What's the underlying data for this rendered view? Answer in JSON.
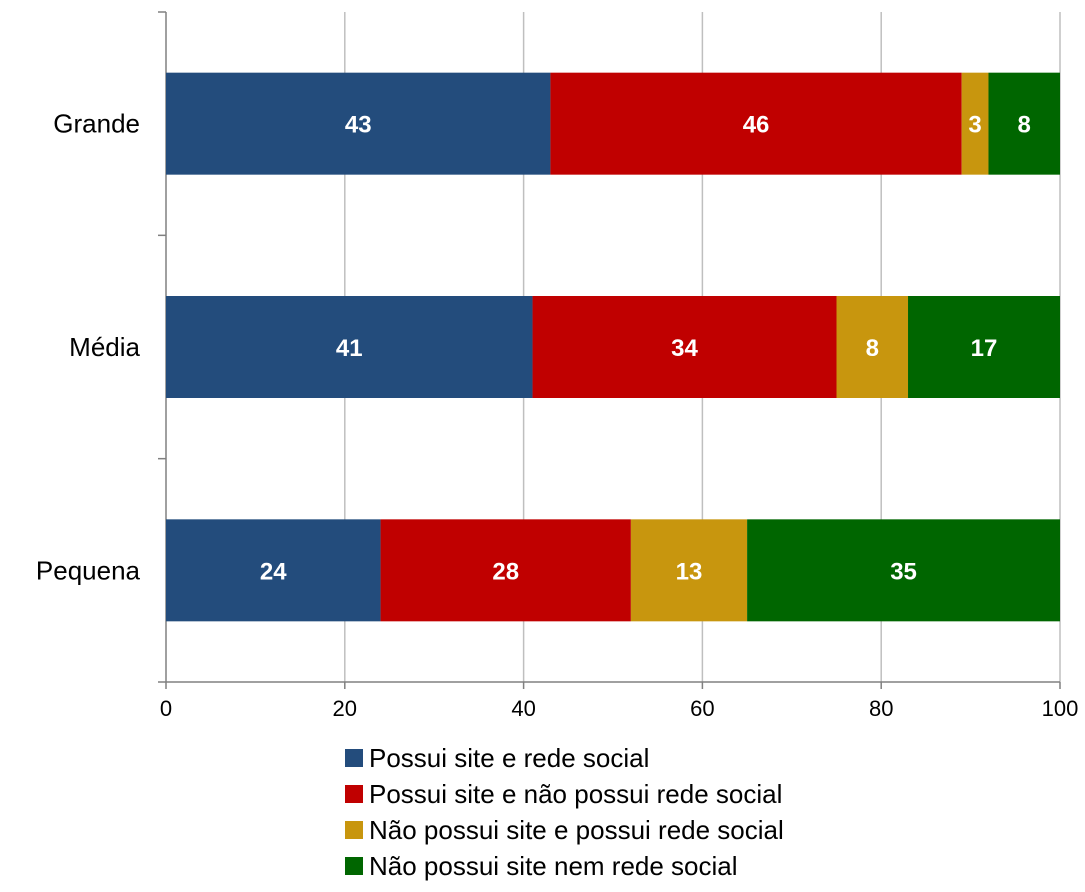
{
  "chart_data": {
    "type": "bar",
    "orientation": "horizontal",
    "stacked": true,
    "title": "",
    "xlabel": "",
    "ylabel": "",
    "xlim": [
      0,
      100
    ],
    "xticks": [
      0,
      20,
      40,
      60,
      80,
      100
    ],
    "grid": true,
    "legend_position": "bottom",
    "categories": [
      "Grande",
      "Média",
      "Pequena"
    ],
    "series": [
      {
        "name": "Possui site e rede social",
        "color": "#234C7C",
        "values": [
          43,
          41,
          24
        ]
      },
      {
        "name": "Possui site e não possui rede social",
        "color": "#C00000",
        "values": [
          46,
          34,
          28
        ]
      },
      {
        "name": "Não possui site e possui rede social",
        "color": "#C8960E",
        "values": [
          3,
          8,
          13
        ]
      },
      {
        "name": "Não possui site nem rede social",
        "color": "#006600",
        "values": [
          8,
          17,
          35
        ]
      }
    ]
  }
}
